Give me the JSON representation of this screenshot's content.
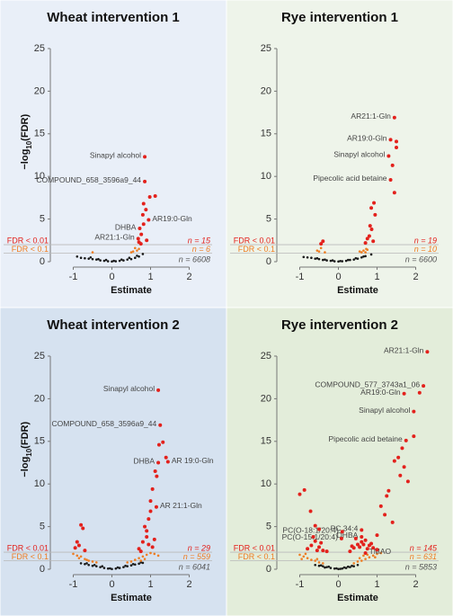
{
  "chart_data": [
    {
      "type": "scatter",
      "title": "Wheat intervention 1",
      "xlabel": "Estimate",
      "ylabel": {
        "main": "−log",
        "sub": "10",
        "tail": "(FDR)"
      },
      "background": "#e9eff8",
      "xlim": [
        -1.5,
        2.5
      ],
      "xticks": [
        -1,
        0,
        1,
        2
      ],
      "ylim": [
        0,
        26
      ],
      "yticks": [
        0,
        5,
        10,
        15,
        20,
        25
      ],
      "thresholds": [
        {
          "label": "FDR < 0.01",
          "value": 2,
          "color": "#e3211c"
        },
        {
          "label": "FDR < 0.1",
          "value": 1,
          "color": "#ee7d22"
        }
      ],
      "counts": [
        {
          "text": "n = 15",
          "color": "#e3211c"
        },
        {
          "text": "n = 6",
          "color": "#ee7d22"
        },
        {
          "text": "n = 6608",
          "color": "#555555"
        }
      ],
      "series": [
        {
          "color": "#1a1a1a",
          "x": [
            -0.9,
            -0.8,
            -0.7,
            -0.6,
            -0.5,
            -0.4,
            -0.3,
            -0.2,
            -0.1,
            0,
            0.1,
            0.2,
            0.3,
            0.4,
            0.5,
            0.6,
            0.7,
            -0.55,
            -0.35,
            -0.15,
            0.05,
            0.25,
            0.45,
            0.65,
            0.8
          ],
          "values": [
            0.6,
            0.45,
            0.4,
            0.35,
            0.3,
            0.25,
            0.15,
            0.1,
            0.05,
            0.02,
            0.05,
            0.1,
            0.15,
            0.25,
            0.3,
            0.45,
            0.6,
            0.5,
            0.3,
            0.2,
            0.1,
            0.25,
            0.45,
            0.7,
            0.9
          ]
        },
        {
          "color": "#ee7d22",
          "x": [
            0.6,
            0.65,
            0.55,
            -0.5,
            0.7,
            0.5
          ],
          "values": [
            1.6,
            1.3,
            1.2,
            1.1,
            1.5,
            1.1
          ]
        },
        {
          "color": "#e3211c",
          "x": [
            0.85,
            0.85,
            0.95,
            0.72,
            0.68,
            0.98,
            1.12,
            0.82,
            0.88,
            0.8,
            0.82,
            0.76,
            0.7,
            0.9,
            0.75
          ],
          "values": [
            12.3,
            9.4,
            4.9,
            3.9,
            2.7,
            7.6,
            7.7,
            6.8,
            6.1,
            5.5,
            4.4,
            3.2,
            2.3,
            2.5,
            2.1
          ],
          "point_labels": [
            "Sinapyl alcohol",
            "COMPOUND_658_3596a9_44",
            "AR19:0-Gln",
            "DHBA",
            "AR21:1-Gln",
            null,
            null,
            null,
            null,
            null,
            null,
            null,
            null,
            null,
            null
          ]
        }
      ]
    },
    {
      "type": "scatter",
      "title": "Rye intervention 1",
      "xlabel": "Estimate",
      "background": "#eef4ea",
      "xlim": [
        -1.5,
        2.5
      ],
      "xticks": [
        -1,
        0,
        1,
        2
      ],
      "ylim": [
        0,
        26
      ],
      "yticks": [
        0,
        5,
        10,
        15,
        20,
        25
      ],
      "thresholds": [
        {
          "label": "FDR < 0.01",
          "value": 2,
          "color": "#e3211c"
        },
        {
          "label": "FDR < 0.1",
          "value": 1,
          "color": "#ee7d22"
        }
      ],
      "counts": [
        {
          "text": "n = 19",
          "color": "#e3211c"
        },
        {
          "text": "n = 10",
          "color": "#ee7d22"
        },
        {
          "text": "n = 6600",
          "color": "#555555"
        }
      ],
      "series": [
        {
          "color": "#1a1a1a",
          "x": [
            -0.9,
            -0.8,
            -0.7,
            -0.6,
            -0.5,
            -0.4,
            -0.3,
            -0.2,
            -0.1,
            0,
            0.1,
            0.2,
            0.3,
            0.4,
            0.5,
            0.6,
            0.7,
            -0.55,
            -0.35,
            -0.15,
            0.05,
            0.25,
            0.45,
            0.65,
            0.85
          ],
          "values": [
            0.55,
            0.5,
            0.45,
            0.35,
            0.3,
            0.2,
            0.15,
            0.1,
            0.05,
            0.02,
            0.05,
            0.1,
            0.2,
            0.25,
            0.35,
            0.5,
            0.65,
            0.4,
            0.25,
            0.15,
            0.08,
            0.2,
            0.4,
            0.6,
            0.85
          ]
        },
        {
          "color": "#ee7d22",
          "x": [
            -0.45,
            0.72,
            -0.5,
            0.65,
            0.6,
            -0.35,
            0.55,
            0.75,
            0.7,
            -0.55
          ],
          "values": [
            1.6,
            1.5,
            1.2,
            1.3,
            1.1,
            1.1,
            1.2,
            1.4,
            1.1,
            1.3
          ]
        },
        {
          "color": "#e3211c",
          "x": [
            1.45,
            1.35,
            1.3,
            1.35,
            1.5,
            1.5,
            1.4,
            1.45,
            0.92,
            0.85,
            0.95,
            0.82,
            0.86,
            0.8,
            0.75,
            -0.4,
            -0.45,
            0.7,
            0.9
          ],
          "values": [
            16.9,
            14.3,
            12.4,
            9.6,
            13.4,
            14.1,
            11.3,
            8.1,
            6.9,
            6.3,
            5.5,
            4.2,
            3.8,
            3.0,
            2.7,
            2.4,
            2.1,
            2.2,
            2.4
          ],
          "point_labels": [
            "AR21:1-Gln",
            "AR19:0-Gln",
            "Sinapyl alcohol",
            "Pipecolic acid betaine",
            null,
            null,
            null,
            null,
            null,
            null,
            null,
            null,
            null,
            null,
            null,
            null,
            null,
            null,
            null
          ]
        }
      ]
    },
    {
      "type": "scatter",
      "title": "Wheat intervention 2",
      "xlabel": "Estimate",
      "ylabel": {
        "main": "−log",
        "sub": "10",
        "tail": "(FDR)"
      },
      "background": "#d6e2f0",
      "xlim": [
        -1.5,
        2.5
      ],
      "xticks": [
        -1,
        0,
        1,
        2
      ],
      "ylim": [
        0,
        26
      ],
      "yticks": [
        0,
        5,
        10,
        15,
        20,
        25
      ],
      "thresholds": [
        {
          "label": "FDR < 0.01",
          "value": 2,
          "color": "#e3211c"
        },
        {
          "label": "FDR < 0.1",
          "value": 1,
          "color": "#ee7d22"
        }
      ],
      "counts": [
        {
          "text": "n = 29",
          "color": "#e3211c"
        },
        {
          "text": "n = 559",
          "color": "#ee7d22"
        },
        {
          "text": "n = 6041",
          "color": "#555555"
        }
      ],
      "series": [
        {
          "color": "#1a1a1a",
          "x": [
            -0.8,
            -0.7,
            -0.6,
            -0.5,
            -0.4,
            -0.3,
            -0.2,
            -0.1,
            0,
            0.1,
            0.2,
            0.3,
            0.4,
            0.5,
            0.6,
            0.7,
            0.8,
            -0.45,
            -0.25,
            -0.05,
            0.15,
            0.35,
            0.55,
            0.75,
            -0.65
          ],
          "values": [
            0.7,
            0.6,
            0.5,
            0.4,
            0.35,
            0.25,
            0.15,
            0.08,
            0.02,
            0.08,
            0.15,
            0.25,
            0.35,
            0.45,
            0.55,
            0.65,
            0.75,
            0.5,
            0.35,
            0.1,
            0.2,
            0.4,
            0.6,
            0.8,
            0.7
          ]
        },
        {
          "color": "#ee7d22",
          "x": [
            -1.0,
            -0.9,
            -0.85,
            -0.8,
            -0.7,
            -0.6,
            -0.5,
            -0.4,
            0.4,
            0.5,
            0.6,
            0.7,
            0.8,
            0.9,
            1.0,
            1.1,
            1.2,
            0.75,
            0.85,
            -0.65
          ],
          "values": [
            1.8,
            1.6,
            1.3,
            1.5,
            1.2,
            1.0,
            0.9,
            0.8,
            0.8,
            0.9,
            1.1,
            1.3,
            1.5,
            1.7,
            1.9,
            1.8,
            1.6,
            1.0,
            1.2,
            1.1
          ]
        },
        {
          "color": "#e3211c",
          "x": [
            1.2,
            1.25,
            1.2,
            1.45,
            1.15,
            1.32,
            1.22,
            1.4,
            1.12,
            1.16,
            1.05,
            1.0,
            1.0,
            0.95,
            0.85,
            0.9,
            0.9,
            0.8,
            -0.8,
            -0.75,
            -0.9,
            -0.85,
            1.05,
            0.7,
            0.75,
            -0.7,
            1.1,
            0.95,
            -0.95
          ],
          "values": [
            21.0,
            16.9,
            12.5,
            12.6,
            7.3,
            14.9,
            14.6,
            13.1,
            11.5,
            10.9,
            9.4,
            8.0,
            6.8,
            5.9,
            5.0,
            4.5,
            3.8,
            3.2,
            5.2,
            4.8,
            3.2,
            2.8,
            2.6,
            2.4,
            2.1,
            2.2,
            3.5,
            2.9,
            2.5
          ],
          "point_labels": [
            "Sinapyl alcohol",
            "COMPOUND_658_3596a9_44",
            "DHBA",
            "AR 19:0-Gln",
            "AR 21:1-Gln",
            null,
            null,
            null,
            null,
            null,
            null,
            null,
            null,
            null,
            null,
            null,
            null,
            null,
            null,
            null,
            null,
            null,
            null,
            null,
            null,
            null,
            null,
            null,
            null
          ]
        }
      ]
    },
    {
      "type": "scatter",
      "title": "Rye intervention 2",
      "xlabel": "Estimate",
      "background": "#e3edda",
      "xlim": [
        -1.5,
        2.5
      ],
      "xticks": [
        -1,
        0,
        1,
        2
      ],
      "ylim": [
        0,
        26
      ],
      "yticks": [
        0,
        5,
        10,
        15,
        20,
        25
      ],
      "thresholds": [
        {
          "label": "FDR < 0.01",
          "value": 2,
          "color": "#e3211c"
        },
        {
          "label": "FDR < 0.1",
          "value": 1,
          "color": "#ee7d22"
        }
      ],
      "counts": [
        {
          "text": "n = 145",
          "color": "#e3211c"
        },
        {
          "text": "n = 631",
          "color": "#ee7d22"
        },
        {
          "text": "n = 5853",
          "color": "#555555"
        }
      ],
      "series": [
        {
          "color": "#1a1a1a",
          "x": [
            -0.6,
            -0.5,
            -0.4,
            -0.3,
            -0.2,
            -0.1,
            0,
            0.1,
            0.2,
            0.3,
            0.4,
            0.5,
            -0.45,
            -0.25,
            -0.05,
            0.15,
            0.35,
            -0.35,
            0.25,
            0.05
          ],
          "values": [
            0.5,
            0.4,
            0.35,
            0.25,
            0.15,
            0.08,
            0.02,
            0.08,
            0.15,
            0.25,
            0.35,
            0.5,
            0.45,
            0.3,
            0.1,
            0.2,
            0.4,
            0.2,
            0.3,
            0.05
          ]
        },
        {
          "color": "#ee7d22",
          "x": [
            -1.0,
            -0.9,
            -0.8,
            -0.7,
            -0.6,
            -0.5,
            -0.4,
            0.4,
            0.5,
            0.6,
            0.7,
            0.8,
            0.9,
            1.0,
            1.1,
            -0.85,
            -0.55,
            0.55,
            0.75,
            0.95,
            -0.95,
            0.65
          ],
          "values": [
            1.7,
            1.5,
            1.3,
            1.1,
            1.0,
            0.8,
            0.7,
            0.7,
            0.9,
            1.0,
            1.2,
            1.4,
            1.6,
            1.8,
            1.9,
            1.8,
            1.2,
            1.3,
            1.7,
            1.4,
            1.2,
            1.6
          ]
        },
        {
          "color": "#e3211c",
          "x": [
            2.3,
            2.2,
            1.7,
            1.95,
            1.75,
            0.6,
            0.6,
            0.1,
            0.08,
            0.7,
            2.1,
            1.95,
            1.65,
            1.55,
            1.45,
            1.7,
            1.6,
            1.8,
            1.3,
            1.25,
            1.1,
            1.2,
            -1.0,
            -0.88,
            -0.72,
            1.4,
            1.0,
            -0.6,
            -0.5,
            -0.8,
            -0.7,
            -0.6,
            -0.5,
            -0.4,
            -0.3,
            0.3,
            0.4,
            0.5,
            0.6,
            0.7,
            0.8,
            0.9,
            1.0,
            -0.65,
            -0.45,
            0.45,
            0.55,
            0.65,
            0.75,
            0.85,
            -0.55,
            0.35
          ],
          "values": [
            25.5,
            21.5,
            20.6,
            18.5,
            15.1,
            4.6,
            3.8,
            4.4,
            3.6,
            1.9,
            20.7,
            15.6,
            14.2,
            13.1,
            12.7,
            12.0,
            11.0,
            10.3,
            9.2,
            8.6,
            7.4,
            6.4,
            8.8,
            9.3,
            6.8,
            5.5,
            4.0,
            5.1,
            4.7,
            2.4,
            2.8,
            3.3,
            2.6,
            2.2,
            2.1,
            2.1,
            2.5,
            2.9,
            3.2,
            3.4,
            2.8,
            2.5,
            2.3,
            3.8,
            3.1,
            3.6,
            2.6,
            2.9,
            2.4,
            3.0,
            2.2,
            2.7
          ],
          "point_labels": [
            "AR21:1-Gln",
            "COMPOUND_577_3743a1_06",
            "AR19:0-Gln",
            "Sinapyl alcohol",
            "Pipecolic acid betaine",
            "PC 34:4",
            "DHBA",
            "PC(O-18:1/20:4)",
            "PC(O-15:1/20:4)",
            "TMAO",
            null,
            null,
            null,
            null,
            null,
            null,
            null,
            null,
            null,
            null,
            null,
            null,
            null,
            null,
            null,
            null,
            null,
            null,
            null,
            null,
            null,
            null,
            null,
            null,
            null,
            null,
            null,
            null,
            null,
            null,
            null,
            null,
            null,
            null,
            null,
            null,
            null,
            null,
            null,
            null,
            null,
            null
          ]
        }
      ]
    }
  ]
}
